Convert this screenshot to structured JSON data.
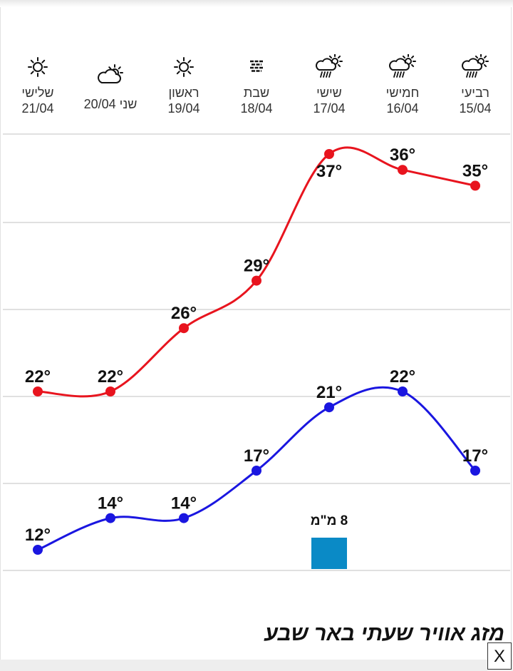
{
  "days": [
    {
      "name": "רביעי",
      "date": "15/04",
      "icon": "rain-cloud-sun-icon"
    },
    {
      "name": "חמישי",
      "date": "16/04",
      "icon": "rain-cloud-sun-icon"
    },
    {
      "name": "שישי",
      "date": "17/04",
      "icon": "rain-cloud-sun-icon"
    },
    {
      "name": "שבת",
      "date": "18/04",
      "icon": "haze-icon"
    },
    {
      "name": "ראשון",
      "date": "19/04",
      "icon": "sun-icon"
    },
    {
      "name": "שני 20/04",
      "date": "",
      "icon": "partly-cloudy-icon"
    },
    {
      "name": "שלישי",
      "date": "21/04",
      "icon": "sun-icon"
    }
  ],
  "chart_data": {
    "type": "line",
    "categories": [
      "15/04",
      "16/04",
      "17/04",
      "18/04",
      "19/04",
      "20/04",
      "21/04"
    ],
    "series": [
      {
        "values": [
          35,
          36,
          37,
          29,
          26,
          22,
          22
        ],
        "color": "#e8141e"
      },
      {
        "values": [
          17,
          22,
          21,
          17,
          14,
          14,
          12
        ],
        "color": "#1a16e0"
      }
    ],
    "unit": "°",
    "precipitation": {
      "category": "17/04",
      "label": "8 מ\"מ",
      "color": "#0a8ac6"
    },
    "grid": true
  },
  "title": "מזג אוויר שעתי באר שבע",
  "close_label": "X"
}
